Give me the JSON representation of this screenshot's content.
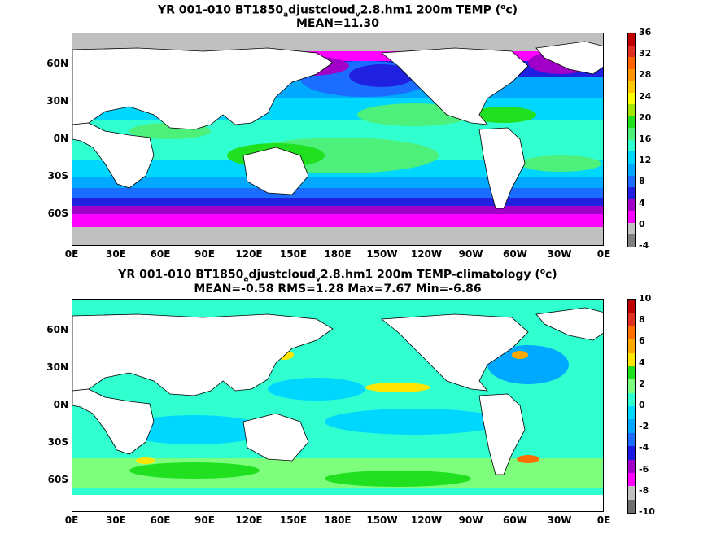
{
  "panels": [
    {
      "title_parts": [
        "YR 001-010 BT1850",
        "a",
        "djustcloud",
        "v",
        "2.8.hm1 200m TEMP (",
        "o",
        "c)"
      ],
      "subtitle": "MEAN=11.30",
      "colorbar_ticks": [
        "36",
        "32",
        "28",
        "24",
        "20",
        "16",
        "12",
        "8",
        "4",
        "0",
        "-4"
      ],
      "colorbar_colors": [
        "#7f7f7f",
        "#c0c0c0",
        "#ff00ff",
        "#a000c8",
        "#2020e0",
        "#1a6dff",
        "#00a8ff",
        "#00d7ff",
        "#30ffd0",
        "#4cf07a",
        "#20e020",
        "#a0e600",
        "#ffff00",
        "#ffc800",
        "#ff9600",
        "#ff6400",
        "#e03020",
        "#c00000"
      ]
    },
    {
      "title_parts": [
        "YR 001-010 BT1850",
        "a",
        "djustcloud",
        "v",
        "2.8.hm1 200m TEMP-climatology (",
        "o",
        "c)"
      ],
      "subtitle": "MEAN=-0.58   RMS=1.28   Max=7.67   Min=-6.86",
      "colorbar_ticks": [
        "10",
        "8",
        "6",
        "4",
        "2",
        "0",
        "-2",
        "-4",
        "-6",
        "-8",
        "-10"
      ],
      "colorbar_colors": [
        "#6e6e6e",
        "#c0c0c0",
        "#ff00ff",
        "#a000c8",
        "#1a1ae0",
        "#1a6dff",
        "#00a8ff",
        "#00d7ff",
        "#30ffd0",
        "#7dff7d",
        "#20e020",
        "#ffe600",
        "#ffa800",
        "#ff7000",
        "#e03020",
        "#c00000"
      ]
    }
  ],
  "map": {
    "lat_labels": [
      "60N",
      "30N",
      "0N",
      "30S",
      "60S"
    ],
    "lon_labels": [
      "0E",
      "30E",
      "60E",
      "90E",
      "120E",
      "150E",
      "180E",
      "150W",
      "120W",
      "90W",
      "60W",
      "30W",
      "0E"
    ]
  }
}
